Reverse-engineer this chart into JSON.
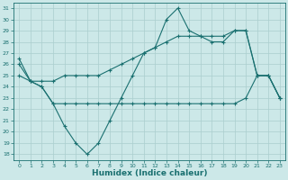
{
  "x": [
    0,
    1,
    2,
    3,
    4,
    5,
    6,
    7,
    8,
    9,
    10,
    11,
    12,
    13,
    14,
    15,
    16,
    17,
    18,
    19,
    20,
    21,
    22,
    23
  ],
  "line1": [
    26.5,
    24.5,
    24.0,
    22.5,
    20.5,
    19.0,
    18.0,
    19.0,
    21.0,
    23.0,
    25.0,
    27.0,
    27.5,
    30.0,
    31.0,
    29.0,
    28.5,
    28.0,
    28.0,
    29.0,
    29.0,
    25.0,
    25.0,
    23.0
  ],
  "line2": [
    26.0,
    24.5,
    24.5,
    24.5,
    25.0,
    25.0,
    25.0,
    25.0,
    25.5,
    26.0,
    26.5,
    27.0,
    27.5,
    28.0,
    28.5,
    28.5,
    28.5,
    28.5,
    28.5,
    29.0,
    29.0,
    25.0,
    25.0,
    23.0
  ],
  "line3": [
    25.0,
    24.5,
    24.0,
    22.5,
    22.5,
    22.5,
    22.5,
    22.5,
    22.5,
    22.5,
    22.5,
    22.5,
    22.5,
    22.5,
    22.5,
    22.5,
    22.5,
    22.5,
    22.5,
    22.5,
    23.0,
    25.0,
    25.0,
    23.0
  ],
  "color": "#1a7070",
  "bg_color": "#cce8e8",
  "xlabel": "Humidex (Indice chaleur)",
  "ylim": [
    17.5,
    31.5
  ],
  "yticks": [
    18,
    19,
    20,
    21,
    22,
    23,
    24,
    25,
    26,
    27,
    28,
    29,
    30,
    31
  ],
  "xticks": [
    0,
    1,
    2,
    3,
    4,
    5,
    6,
    7,
    8,
    9,
    10,
    11,
    12,
    13,
    14,
    15,
    16,
    17,
    18,
    19,
    20,
    21,
    22,
    23
  ],
  "grid_color": "#aacece",
  "marker": "+"
}
